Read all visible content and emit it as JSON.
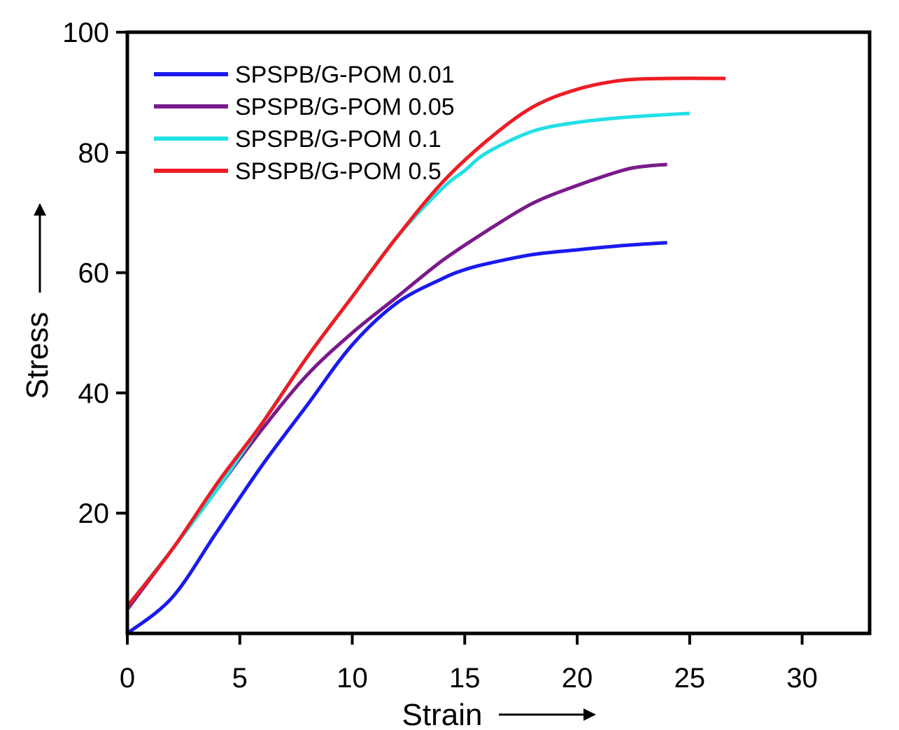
{
  "chart_data": {
    "type": "line",
    "title": "",
    "xlabel": "Strain",
    "ylabel": "Stress",
    "xlim": [
      0,
      33
    ],
    "ylim": [
      0,
      100
    ],
    "x_ticks": [
      0,
      5,
      10,
      15,
      20,
      25,
      30
    ],
    "x_tick_labels": [
      "0",
      "5",
      "10",
      "15",
      "20",
      "25",
      "30"
    ],
    "y_ticks": [
      20,
      40,
      60,
      80,
      100
    ],
    "y_tick_labels": [
      "20",
      "40",
      "60",
      "80",
      "100"
    ],
    "grid": false,
    "legend_position": "top-left",
    "series": [
      {
        "name": "SPSPB/G-POM 0.01",
        "color": "#1a1aee",
        "points": [
          [
            0,
            0
          ],
          [
            2,
            6
          ],
          [
            4,
            17
          ],
          [
            6,
            28
          ],
          [
            8,
            38
          ],
          [
            10,
            48
          ],
          [
            12,
            55
          ],
          [
            14,
            59
          ],
          [
            15,
            60.5
          ],
          [
            16,
            61.5
          ],
          [
            18,
            63
          ],
          [
            20,
            63.8
          ],
          [
            22,
            64.5
          ],
          [
            24,
            65
          ]
        ]
      },
      {
        "name": "SPSPB/G-POM 0.05",
        "color": "#7a1a8a",
        "points": [
          [
            0,
            4
          ],
          [
            2,
            14
          ],
          [
            4,
            24
          ],
          [
            6,
            34
          ],
          [
            8,
            43
          ],
          [
            10,
            50
          ],
          [
            12,
            56
          ],
          [
            14,
            62
          ],
          [
            16,
            67
          ],
          [
            18,
            71.5
          ],
          [
            20,
            74.5
          ],
          [
            22,
            77
          ],
          [
            23,
            77.7
          ],
          [
            24,
            78
          ]
        ]
      },
      {
        "name": "SPSPB/G-POM 0.1",
        "color": "#22e0e6",
        "points": [
          [
            0,
            4.5
          ],
          [
            2,
            14
          ],
          [
            4,
            24
          ],
          [
            6,
            35
          ],
          [
            8,
            46
          ],
          [
            10,
            56
          ],
          [
            12,
            66
          ],
          [
            14,
            74
          ],
          [
            15,
            77
          ],
          [
            16,
            80
          ],
          [
            18,
            83.5
          ],
          [
            20,
            85
          ],
          [
            22,
            85.8
          ],
          [
            24,
            86.3
          ],
          [
            25,
            86.5
          ]
        ]
      },
      {
        "name": "SPSPB/G-POM 0.5",
        "color": "#ee1c24",
        "points": [
          [
            0,
            4.5
          ],
          [
            2,
            14
          ],
          [
            4,
            25
          ],
          [
            6,
            35
          ],
          [
            8,
            46
          ],
          [
            10,
            56
          ],
          [
            12,
            66
          ],
          [
            14,
            75
          ],
          [
            16,
            82
          ],
          [
            18,
            87.5
          ],
          [
            20,
            90.5
          ],
          [
            22,
            92
          ],
          [
            24,
            92.3
          ],
          [
            26.6,
            92.3
          ]
        ]
      }
    ]
  }
}
